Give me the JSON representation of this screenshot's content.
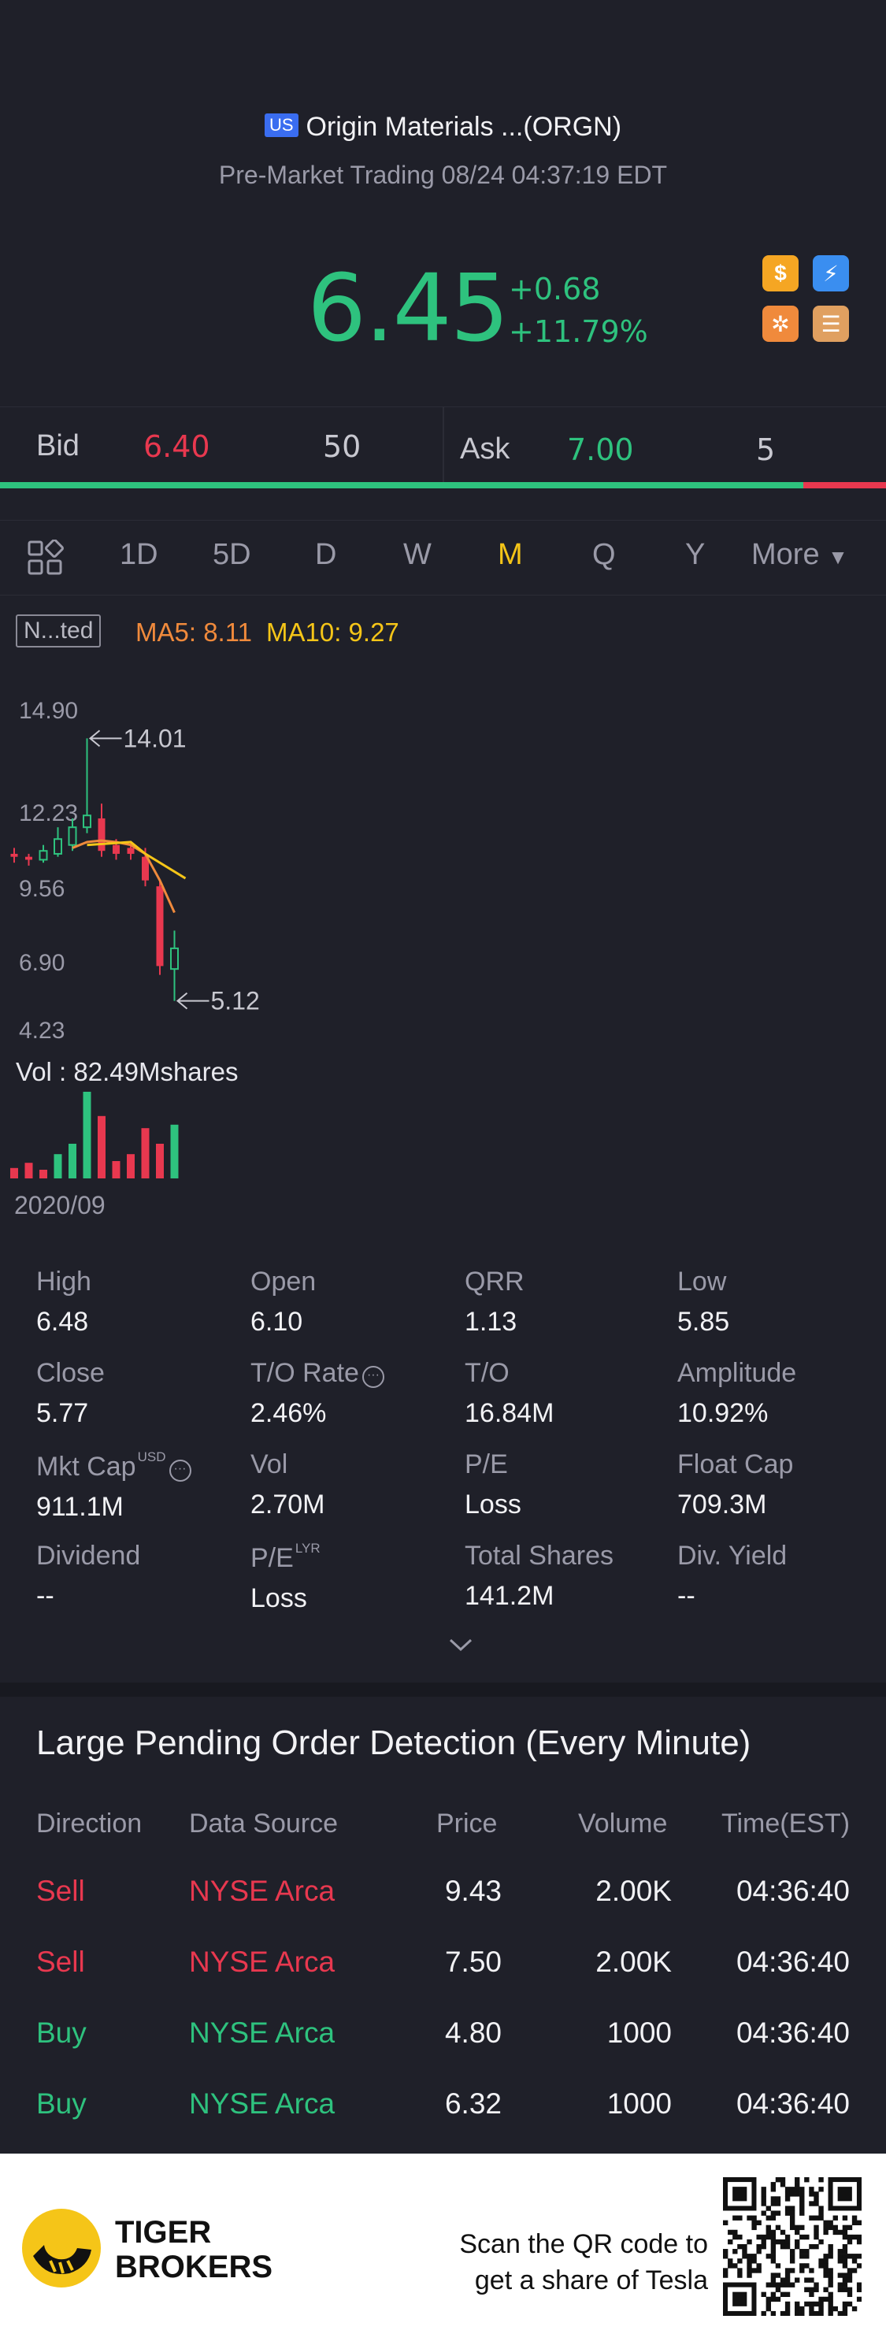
{
  "header": {
    "market_badge": "US",
    "stock_name": "Origin Materials ...(ORGN)",
    "session": "Pre-Market Trading 08/24 04:37:19 EDT",
    "price": "6.45",
    "change": "+0.68",
    "change_pct": "+11.79%",
    "icons": [
      "dollar-icon",
      "lightning-1-icon",
      "options-icon",
      "layers-a-icon"
    ]
  },
  "bidask": {
    "bid_label": "Bid",
    "bid_price": "6.40",
    "bid_size": "50",
    "ask_label": "Ask",
    "ask_price": "7.00",
    "ask_size": "5",
    "bid_fraction": 0.907
  },
  "tabs": [
    "1D",
    "5D",
    "D",
    "W",
    "M",
    "Q",
    "Y",
    "More"
  ],
  "active_tab": "M",
  "chart": {
    "indicator_label": "N...ted",
    "ma5": "MA5: 8.11",
    "ma10": "MA10: 9.27",
    "y_labels": [
      "14.90",
      "12.23",
      "9.56",
      "6.90",
      "4.23"
    ],
    "high_marker": "14.01",
    "low_marker": "5.12",
    "volume_label": "Vol  : 82.49Mshares",
    "start_date": "2020/09"
  },
  "chart_data": {
    "type": "candlestick",
    "ylim": [
      4.23,
      14.9
    ],
    "candles": [
      {
        "o": 10.0,
        "c": 10.1,
        "h": 10.3,
        "l": 9.8,
        "dir": "down"
      },
      {
        "o": 9.9,
        "c": 10.0,
        "h": 10.1,
        "l": 9.7,
        "dir": "down"
      },
      {
        "o": 9.9,
        "c": 10.2,
        "h": 10.4,
        "l": 9.8,
        "dir": "up"
      },
      {
        "o": 10.1,
        "c": 10.6,
        "h": 11.0,
        "l": 10.0,
        "dir": "up"
      },
      {
        "o": 10.4,
        "c": 11.0,
        "h": 11.3,
        "l": 10.2,
        "dir": "up"
      },
      {
        "o": 11.0,
        "c": 11.4,
        "h": 14.01,
        "l": 10.8,
        "dir": "up"
      },
      {
        "o": 11.3,
        "c": 10.2,
        "h": 11.8,
        "l": 10.0,
        "dir": "down"
      },
      {
        "o": 10.4,
        "c": 10.1,
        "h": 10.6,
        "l": 9.9,
        "dir": "down"
      },
      {
        "o": 10.3,
        "c": 10.1,
        "h": 10.5,
        "l": 9.9,
        "dir": "down"
      },
      {
        "o": 10.0,
        "c": 9.2,
        "h": 10.3,
        "l": 9.0,
        "dir": "down"
      },
      {
        "o": 9.0,
        "c": 6.3,
        "h": 9.2,
        "l": 6.0,
        "dir": "down"
      },
      {
        "o": 6.2,
        "c": 6.9,
        "h": 7.5,
        "l": 5.12,
        "dir": "up"
      }
    ],
    "volumes": [
      {
        "v": 0.12,
        "dir": "down"
      },
      {
        "v": 0.18,
        "dir": "down"
      },
      {
        "v": 0.1,
        "dir": "down"
      },
      {
        "v": 0.28,
        "dir": "up"
      },
      {
        "v": 0.4,
        "dir": "up"
      },
      {
        "v": 1.0,
        "dir": "up"
      },
      {
        "v": 0.72,
        "dir": "down"
      },
      {
        "v": 0.2,
        "dir": "down"
      },
      {
        "v": 0.28,
        "dir": "down"
      },
      {
        "v": 0.58,
        "dir": "down"
      },
      {
        "v": 0.4,
        "dir": "down"
      },
      {
        "v": 0.62,
        "dir": "up"
      }
    ]
  },
  "stats": [
    {
      "k": "High",
      "v": "6.48"
    },
    {
      "k": "Open",
      "v": "6.10"
    },
    {
      "k": "QRR",
      "v": "1.13"
    },
    {
      "k": "Low",
      "v": "5.85"
    },
    {
      "k": "Close",
      "v": "5.77"
    },
    {
      "k": "T/O Rate",
      "v": "2.46%",
      "info": true
    },
    {
      "k": "T/O",
      "v": "16.84M"
    },
    {
      "k": "Amplitude",
      "v": "10.92%"
    },
    {
      "k": "Mkt Cap",
      "v": "911.1M",
      "sup": "USD",
      "info": true
    },
    {
      "k": "Vol",
      "v": "2.70M"
    },
    {
      "k": "P/E",
      "v": "Loss"
    },
    {
      "k": "Float Cap",
      "v": "709.3M"
    },
    {
      "k": "Dividend",
      "v": "--"
    },
    {
      "k": "P/E",
      "v": "Loss",
      "sup": "LYR"
    },
    {
      "k": "Total Shares",
      "v": "141.2M"
    },
    {
      "k": "Div. Yield",
      "v": "--"
    }
  ],
  "orders": {
    "title": "Large Pending Order Detection (Every Minute)",
    "headers": [
      "Direction",
      "Data Source",
      "Price",
      "Volume",
      "Time(EST)"
    ],
    "rows": [
      {
        "direction": "Sell",
        "source": "NYSE Arca",
        "price": "9.43",
        "volume": "2.00K",
        "time": "04:36:40"
      },
      {
        "direction": "Sell",
        "source": "NYSE Arca",
        "price": "7.50",
        "volume": "2.00K",
        "time": "04:36:40"
      },
      {
        "direction": "Buy",
        "source": "NYSE Arca",
        "price": "4.80",
        "volume": "1000",
        "time": "04:36:40"
      },
      {
        "direction": "Buy",
        "source": "NYSE Arca",
        "price": "6.32",
        "volume": "1000",
        "time": "04:36:40"
      }
    ]
  },
  "footer": {
    "brand_line1": "TIGER",
    "brand_line2": "BROKERS",
    "scan_line1": "Scan the QR code to",
    "scan_line2": "get a share of Tesla"
  },
  "colors": {
    "up": "#2ec27e",
    "down": "#e8384f",
    "accent": "#f5c518"
  }
}
